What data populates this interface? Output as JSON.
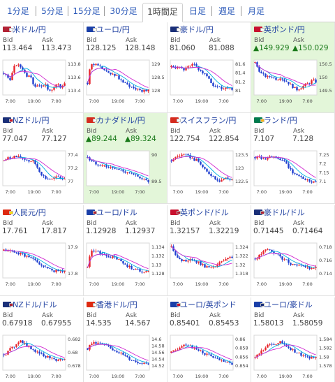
{
  "tabs": [
    {
      "label": "1分足",
      "active": false
    },
    {
      "label": "5分足",
      "active": false
    },
    {
      "label": "15分足",
      "active": false
    },
    {
      "label": "30分足",
      "active": false
    },
    {
      "label": "1時間足",
      "active": true
    },
    {
      "label": "日足",
      "active": false
    },
    {
      "label": "週足",
      "active": false
    },
    {
      "label": "月足",
      "active": false
    }
  ],
  "labels": {
    "bid": "Bid",
    "ask": "Ask"
  },
  "colors": {
    "link": "#1e3fa0",
    "up_candle": "#e8232a",
    "down_candle": "#1f3fd0",
    "ma_line": "#d02ad0",
    "ma_line2": "#00b0e0",
    "highlight": "#e3f6d9"
  },
  "pairs": [
    {
      "name": "米ドル/円",
      "bid": "113.464",
      "ask": "113.473",
      "dir": "",
      "hl": false,
      "flags": [
        "#b22234",
        "#ffffff"
      ],
      "chart_data": {
        "type": "candlestick",
        "yticks": [
          "113.8",
          "113.6",
          "113.4"
        ],
        "xticks": [
          "7:00",
          "19:00",
          "7:00"
        ],
        "trend": [
          0.62,
          0.55,
          0.38,
          0.78,
          0.88,
          0.82,
          0.75,
          0.55,
          0.6,
          0.35,
          0.25,
          0.32,
          0.2,
          0.28,
          0.15,
          0.18,
          0.25,
          0.3,
          0.22,
          0.3
        ]
      }
    },
    {
      "name": "ユーロ/円",
      "bid": "128.125",
      "ask": "128.148",
      "dir": "",
      "hl": false,
      "flags": [
        "#1a3fa8",
        "#ffffff"
      ],
      "chart_data": {
        "type": "candlestick",
        "yticks": [
          "129",
          "128.5",
          "128"
        ],
        "xticks": [
          "7:00",
          "19:00",
          "7:00"
        ],
        "trend": [
          0.35,
          0.92,
          0.85,
          0.88,
          0.8,
          0.72,
          0.65,
          0.6,
          0.62,
          0.55,
          0.45,
          0.38,
          0.3,
          0.28,
          0.22,
          0.18,
          0.2,
          0.12,
          0.15,
          0.12
        ]
      }
    },
    {
      "name": "豪ドル/円",
      "bid": "81.060",
      "ask": "81.088",
      "dir": "",
      "hl": false,
      "flags": [
        "#1a2f78",
        "#ffffff"
      ],
      "chart_data": {
        "type": "candlestick",
        "yticks": [
          "81.6",
          "81.4",
          "81.2",
          "81"
        ],
        "xticks": [
          "7:00",
          "19:00",
          "7:00"
        ],
        "trend": [
          0.8,
          0.78,
          0.82,
          0.75,
          0.72,
          0.78,
          0.82,
          0.88,
          0.8,
          0.7,
          0.62,
          0.55,
          0.4,
          0.3,
          0.2,
          0.25,
          0.18,
          0.2,
          0.22,
          0.18
        ]
      }
    },
    {
      "name": "英ポンド/円",
      "bid": "149.929",
      "ask": "150.029",
      "dir": "up",
      "hl": true,
      "flags": [
        "#c8102e",
        "#ffffff"
      ],
      "chart_data": {
        "type": "candlestick",
        "yticks": [
          "150.5",
          "150",
          "149.5"
        ],
        "xticks": [
          "7:00",
          "19:00",
          "7:00"
        ],
        "trend": [
          0.92,
          0.75,
          0.6,
          0.55,
          0.5,
          0.55,
          0.48,
          0.45,
          0.52,
          0.42,
          0.38,
          0.3,
          0.22,
          0.15,
          0.2,
          0.25,
          0.3,
          0.35,
          0.42,
          0.38
        ]
      }
    },
    {
      "name": "NZドル/円",
      "bid": "77.047",
      "ask": "77.127",
      "dir": "",
      "hl": false,
      "flags": [
        "#1a2f78",
        "#cc1a2a"
      ],
      "chart_data": {
        "type": "candlestick",
        "yticks": [
          "77.4",
          "77.2",
          "77"
        ],
        "xticks": [
          "7:00",
          "19:00",
          "7:00"
        ],
        "trend": [
          0.72,
          0.78,
          0.8,
          0.85,
          0.82,
          0.8,
          0.78,
          0.75,
          0.7,
          0.72,
          0.6,
          0.45,
          0.3,
          0.22,
          0.2,
          0.18,
          0.22,
          0.25,
          0.2,
          0.22
        ]
      }
    },
    {
      "name": "カナダドル/円",
      "bid": "89.244",
      "ask": "89.324",
      "dir": "up",
      "hl": true,
      "flags": [
        "#d52b1e",
        "#ffffff"
      ],
      "chart_data": {
        "type": "candlestick",
        "yticks": [
          "90",
          "89.5"
        ],
        "xticks": [
          "7:00",
          "19:00",
          "7:00"
        ],
        "trend": [
          0.82,
          0.7,
          0.66,
          0.62,
          0.6,
          0.58,
          0.55,
          0.52,
          0.5,
          0.48,
          0.45,
          0.42,
          0.4,
          0.38,
          0.32,
          0.28,
          0.25,
          0.22,
          0.15,
          0.12
        ]
      }
    },
    {
      "name": "スイスフラン/円",
      "bid": "122.754",
      "ask": "122.854",
      "dir": "",
      "hl": false,
      "flags": [
        "#d52b1e",
        "#ffffff"
      ],
      "chart_data": {
        "type": "candlestick",
        "yticks": [
          "123.5",
          "123",
          "122.5"
        ],
        "xticks": [
          "7:00",
          "19:00",
          "7:00"
        ],
        "trend": [
          0.72,
          0.8,
          0.85,
          0.88,
          0.9,
          0.85,
          0.82,
          0.75,
          0.72,
          0.65,
          0.5,
          0.4,
          0.35,
          0.28,
          0.2,
          0.15,
          0.18,
          0.22,
          0.2,
          0.18
        ]
      }
    },
    {
      "name": "ランド/円",
      "bid": "7.107",
      "ask": "7.128",
      "dir": "",
      "hl": false,
      "flags": [
        "#007a4d",
        "#ffb612"
      ],
      "chart_data": {
        "type": "candlestick",
        "yticks": [
          "7.25",
          "7.2",
          "7.15",
          "7.1"
        ],
        "xticks": [
          "7:00",
          "19:00",
          "7:00"
        ],
        "trend": [
          0.82,
          0.85,
          0.8,
          0.78,
          0.82,
          0.85,
          0.8,
          0.78,
          0.75,
          0.7,
          0.6,
          0.45,
          0.35,
          0.3,
          0.28,
          0.22,
          0.18,
          0.15,
          0.12,
          0.1
        ]
      }
    },
    {
      "name": "人民元/円",
      "bid": "17.761",
      "ask": "17.817",
      "dir": "",
      "hl": false,
      "flags": [
        "#de2910",
        "#ffde00"
      ],
      "chart_data": {
        "type": "candlestick",
        "yticks": [
          "17.9",
          "17.8"
        ],
        "xticks": [
          "7:00",
          "19:00",
          "7:00"
        ],
        "trend": [
          0.78,
          0.8,
          0.78,
          0.75,
          0.7,
          0.72,
          0.68,
          0.62,
          0.58,
          0.55,
          0.48,
          0.42,
          0.35,
          0.3,
          0.25,
          0.22,
          0.2,
          0.18,
          0.22,
          0.2
        ]
      }
    },
    {
      "name": "ユーロ/ドル",
      "bid": "1.12928",
      "ask": "1.12937",
      "dir": "",
      "hl": false,
      "flags": [
        "#1a3fa8",
        "#b22234"
      ],
      "chart_data": {
        "type": "candlestick",
        "yticks": [
          "1.134",
          "1.132",
          "1.13",
          "1.128"
        ],
        "xticks": [
          "7:00",
          "19:00",
          "7:00"
        ],
        "trend": [
          0.3,
          0.82,
          0.78,
          0.75,
          0.7,
          0.65,
          0.62,
          0.6,
          0.58,
          0.55,
          0.5,
          0.42,
          0.38,
          0.32,
          0.28,
          0.25,
          0.22,
          0.18,
          0.2,
          0.18
        ]
      }
    },
    {
      "name": "英ポンド/ドル",
      "bid": "1.32157",
      "ask": "1.32219",
      "dir": "",
      "hl": false,
      "flags": [
        "#c8102e",
        "#b22234"
      ],
      "chart_data": {
        "type": "candlestick",
        "yticks": [
          "1.324",
          "1.322",
          "1.32",
          "1.318"
        ],
        "xticks": [
          "7:00",
          "19:00",
          "7:00"
        ],
        "trend": [
          0.9,
          0.75,
          0.55,
          0.5,
          0.48,
          0.52,
          0.55,
          0.5,
          0.45,
          0.42,
          0.35,
          0.32,
          0.3,
          0.28,
          0.35,
          0.42,
          0.48,
          0.52,
          0.58,
          0.55
        ]
      }
    },
    {
      "name": "豪ドル/ドル",
      "bid": "0.71445",
      "ask": "0.71464",
      "dir": "",
      "hl": false,
      "flags": [
        "#1a2f78",
        "#b22234"
      ],
      "chart_data": {
        "type": "candlestick",
        "yticks": [
          "0.718",
          "0.716",
          "0.714"
        ],
        "xticks": [
          "7:00",
          "19:00",
          "7:00"
        ],
        "trend": [
          0.55,
          0.6,
          0.7,
          0.78,
          0.82,
          0.78,
          0.72,
          0.65,
          0.6,
          0.52,
          0.48,
          0.42,
          0.38,
          0.4,
          0.35,
          0.3,
          0.32,
          0.28,
          0.3,
          0.28
        ]
      }
    },
    {
      "name": "NZドル/ドル",
      "bid": "0.67918",
      "ask": "0.67955",
      "dir": "",
      "hl": false,
      "flags": [
        "#1a2f78",
        "#b22234"
      ],
      "chart_data": {
        "type": "candlestick",
        "yticks": [
          "0.682",
          "0.68",
          "0.678"
        ],
        "xticks": [
          "7:00",
          "19:00",
          "7:00"
        ],
        "trend": [
          0.45,
          0.5,
          0.6,
          0.65,
          0.78,
          0.85,
          0.8,
          0.72,
          0.65,
          0.6,
          0.55,
          0.5,
          0.45,
          0.4,
          0.35,
          0.38,
          0.32,
          0.28,
          0.3,
          0.28
        ]
      }
    },
    {
      "name": "香港ドル/円",
      "bid": "14.535",
      "ask": "14.567",
      "dir": "",
      "hl": false,
      "flags": [
        "#de2910",
        "#ffffff"
      ],
      "chart_data": {
        "type": "candlestick",
        "yticks": [
          "14.6",
          "14.58",
          "14.56",
          "14.54",
          "14.52"
        ],
        "xticks": [
          "7:00",
          "19:00",
          "7:00"
        ],
        "trend": [
          0.62,
          0.72,
          0.8,
          0.78,
          0.75,
          0.72,
          0.68,
          0.62,
          0.58,
          0.55,
          0.5,
          0.45,
          0.38,
          0.32,
          0.28,
          0.25,
          0.22,
          0.2,
          0.22,
          0.2
        ]
      }
    },
    {
      "name": "ユーロ/英ポンド",
      "bid": "0.85401",
      "ask": "0.85453",
      "dir": "",
      "hl": false,
      "flags": [
        "#1a3fa8",
        "#c8102e"
      ],
      "chart_data": {
        "type": "candlestick",
        "yticks": [
          "0.86",
          "0.858",
          "0.856",
          "0.854"
        ],
        "xticks": [
          "7:00",
          "19:00",
          "7:00"
        ],
        "trend": [
          0.5,
          0.55,
          0.62,
          0.7,
          0.75,
          0.72,
          0.68,
          0.62,
          0.58,
          0.55,
          0.5,
          0.45,
          0.42,
          0.38,
          0.32,
          0.28,
          0.25,
          0.22,
          0.2,
          0.18
        ]
      }
    },
    {
      "name": "ユーロ/豪ドル",
      "bid": "1.58013",
      "ask": "1.58059",
      "dir": "",
      "hl": false,
      "flags": [
        "#1a3fa8",
        "#1a2f78"
      ],
      "chart_data": {
        "type": "candlestick",
        "yticks": [
          "1.584",
          "1.582",
          "1.58",
          "1.578"
        ],
        "xticks": [
          "7:00",
          "19:00",
          "7:00"
        ],
        "trend": [
          0.35,
          0.45,
          0.55,
          0.62,
          0.7,
          0.75,
          0.72,
          0.78,
          0.8,
          0.75,
          0.68,
          0.62,
          0.55,
          0.5,
          0.45,
          0.4,
          0.38,
          0.35,
          0.38,
          0.4
        ]
      }
    }
  ]
}
